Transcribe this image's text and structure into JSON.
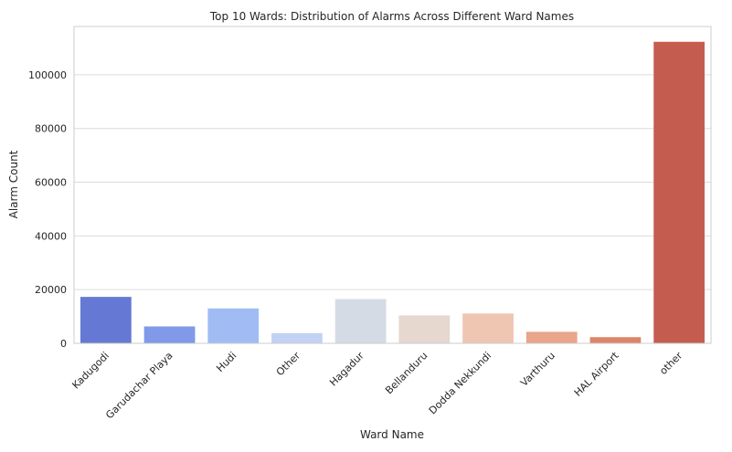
{
  "chart_data": {
    "type": "bar",
    "title": "Top 10 Wards: Distribution of Alarms Across Different Ward Names",
    "xlabel": "Ward Name",
    "ylabel": "Alarm Count",
    "categories": [
      "Kadugodi",
      "Garudachar Playa",
      "Hudi",
      "Other",
      "Hagadur",
      "Bellanduru",
      "Dodda Nekkundi",
      "Varthuru",
      "HAL Airport",
      "other"
    ],
    "values": [
      17300,
      6300,
      13000,
      3800,
      16500,
      10400,
      11100,
      4300,
      2300,
      112300
    ],
    "colors": [
      "#6579d4",
      "#8099e8",
      "#a1bcf4",
      "#c1d2f4",
      "#d5dbe5",
      "#e6d7cf",
      "#eec6b2",
      "#eaa58a",
      "#dd8568",
      "#c55c50"
    ],
    "ylim": [
      0,
      118000
    ],
    "yticks": [
      0,
      20000,
      40000,
      60000,
      80000,
      100000
    ],
    "grid": true
  }
}
